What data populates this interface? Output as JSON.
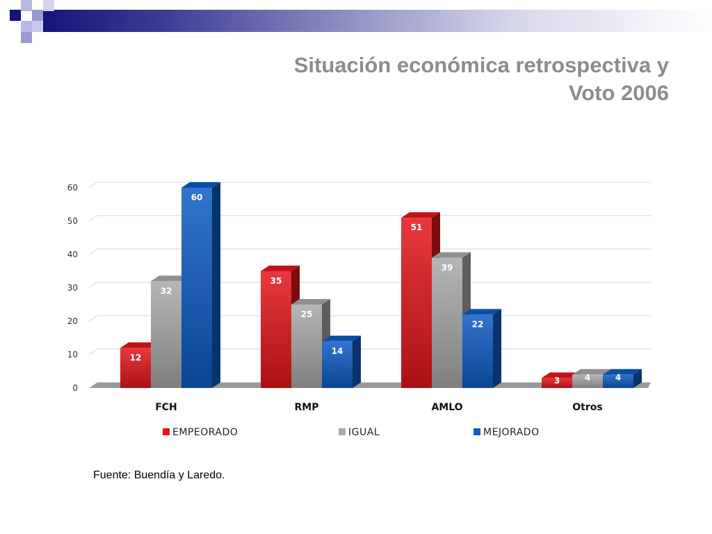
{
  "slide": {
    "title_line1": "Situación económica retrospectiva y",
    "title_line2": "Voto 2006",
    "source": "Fuente: Buendía y Laredo."
  },
  "colors": {
    "header_dark": "#14147a",
    "header_light": "#9a9ad0",
    "title": "#8c8c8c"
  },
  "chart_data": {
    "type": "bar",
    "style": "3d-clustered",
    "categories": [
      "FCH",
      "RMP",
      "AMLO",
      "Otros"
    ],
    "series": [
      {
        "name": "EMPEORADO",
        "color": "#e3161b",
        "values": [
          12,
          35,
          51,
          3
        ]
      },
      {
        "name": "IGUAL",
        "color": "#a9a9a9",
        "values": [
          32,
          25,
          39,
          4
        ]
      },
      {
        "name": "MEJORADO",
        "color": "#0e5cc4",
        "values": [
          60,
          14,
          22,
          4
        ]
      }
    ],
    "ylim": [
      0,
      60
    ],
    "yticks": [
      "0",
      "10",
      "20",
      "30",
      "40",
      "50",
      "60"
    ],
    "grid": true,
    "legend": "bottom",
    "data_labels": true
  }
}
